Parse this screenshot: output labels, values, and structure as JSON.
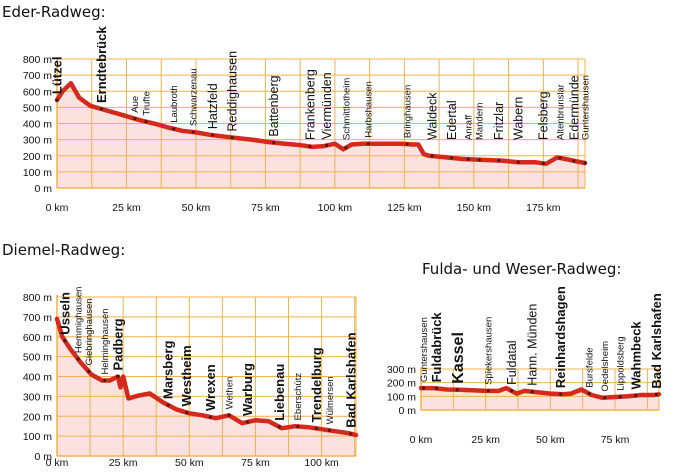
{
  "chart_data": [
    {
      "type": "area",
      "title": "Eder-Radweg:",
      "xlim": [
        0,
        190
      ],
      "ylim": [
        0,
        800
      ],
      "x_ticks": [
        0,
        25,
        50,
        75,
        100,
        125,
        150,
        175
      ],
      "x_tick_labels": [
        "0 km",
        "25 km",
        "50 km",
        "75 km",
        "100 km",
        "125 km",
        "150 km",
        "175 km"
      ],
      "y_ticks": [
        0,
        100,
        200,
        300,
        400,
        500,
        600,
        700,
        800
      ],
      "y_tick_labels": [
        "0 m",
        "100 m",
        "200 m",
        "300 m",
        "400 m",
        "500 m",
        "600 m",
        "700 m",
        "800 m"
      ],
      "grid": true,
      "x": [
        0,
        2,
        5,
        8,
        12,
        16,
        20,
        25,
        30,
        36,
        40,
        45,
        50,
        55,
        62,
        70,
        76,
        82,
        88,
        92,
        96,
        100,
        103,
        106,
        110,
        118,
        124,
        128,
        130,
        132,
        134,
        140,
        146,
        152,
        160,
        166,
        172,
        176,
        180,
        183,
        187,
        190
      ],
      "y": [
        545,
        600,
        650,
        560,
        510,
        490,
        470,
        445,
        420,
        395,
        375,
        355,
        345,
        330,
        315,
        300,
        285,
        275,
        265,
        255,
        260,
        275,
        240,
        270,
        275,
        275,
        275,
        270,
        270,
        210,
        200,
        190,
        180,
        175,
        170,
        160,
        160,
        150,
        190,
        180,
        165,
        155
      ],
      "places": [
        {
          "label": "Lützel",
          "km": 0,
          "size": "l"
        },
        {
          "label": "Erndtebrück",
          "km": 16,
          "size": "l"
        },
        {
          "label": "Aue",
          "km": 28,
          "size": "s"
        },
        {
          "label": "Trufte",
          "km": 32,
          "size": "s"
        },
        {
          "label": "Laubroth",
          "km": 42,
          "size": "s"
        },
        {
          "label": "Schwarzenau",
          "km": 49,
          "size": "s"
        },
        {
          "label": "Hatzfeld",
          "km": 56,
          "size": "m"
        },
        {
          "label": "Reddighausen",
          "km": 63,
          "size": "m"
        },
        {
          "label": "Battenberg",
          "km": 78,
          "size": "m"
        },
        {
          "label": "Frankenberg",
          "km": 91,
          "size": "m"
        },
        {
          "label": "Viermünden",
          "km": 97,
          "size": "m"
        },
        {
          "label": "Schmittlotheim",
          "km": 104,
          "size": "s"
        },
        {
          "label": "Harbshausen",
          "km": 112,
          "size": "s"
        },
        {
          "label": "Bringhausen",
          "km": 126,
          "size": "s"
        },
        {
          "label": "Waldeck",
          "km": 135,
          "size": "m"
        },
        {
          "label": "Edertal",
          "km": 142,
          "size": "m"
        },
        {
          "label": "Anraff",
          "km": 148,
          "size": "s"
        },
        {
          "label": "Mandern",
          "km": 152,
          "size": "s"
        },
        {
          "label": "Fritzlar",
          "km": 159,
          "size": "m"
        },
        {
          "label": "Wabern",
          "km": 166,
          "size": "m"
        },
        {
          "label": "Felsberg",
          "km": 175,
          "size": "m"
        },
        {
          "label": "Altenbrunslar",
          "km": 181,
          "size": "s"
        },
        {
          "label": "Edermünde",
          "km": 186,
          "size": "m"
        },
        {
          "label": "Guntershausen",
          "km": 192,
          "size": "s"
        }
      ]
    },
    {
      "type": "area",
      "title": "Diemel-Radweg:",
      "xlim": [
        0,
        113
      ],
      "ylim": [
        0,
        800
      ],
      "x_ticks": [
        0,
        25,
        50,
        75,
        100
      ],
      "x_tick_labels": [
        "0 km",
        "25 km",
        "50 km",
        "75 km",
        "100 km"
      ],
      "y_ticks": [
        0,
        100,
        200,
        300,
        400,
        500,
        600,
        700,
        800
      ],
      "y_tick_labels": [
        "0 m",
        "100 m",
        "200 m",
        "300 m",
        "400 m",
        "500 m",
        "600 m",
        "700 m",
        "800 m"
      ],
      "grid": true,
      "x": [
        0,
        2,
        5,
        9,
        13,
        17,
        20,
        23,
        24,
        25,
        27,
        31,
        35,
        40,
        45,
        50,
        55,
        60,
        65,
        70,
        75,
        80,
        85,
        90,
        95,
        100,
        105,
        110,
        113
      ],
      "y": [
        690,
        600,
        540,
        470,
        410,
        380,
        380,
        400,
        345,
        400,
        290,
        305,
        315,
        270,
        235,
        215,
        205,
        190,
        205,
        165,
        180,
        175,
        140,
        150,
        145,
        135,
        125,
        115,
        105
      ],
      "places": [
        {
          "label": "Usseln",
          "km": 3,
          "size": "l"
        },
        {
          "label": "Hemmighausen",
          "km": 8,
          "size": "s"
        },
        {
          "label": "Giebringhausen",
          "km": 12,
          "size": "s"
        },
        {
          "label": "Helminghausen",
          "km": 18,
          "size": "s"
        },
        {
          "label": "Padberg",
          "km": 23,
          "size": "l"
        },
        {
          "label": "Marsberg",
          "km": 42,
          "size": "l"
        },
        {
          "label": "Westheim",
          "km": 49,
          "size": "l"
        },
        {
          "label": "Wrexen",
          "km": 58,
          "size": "l"
        },
        {
          "label": "Wethen",
          "km": 65,
          "size": "s"
        },
        {
          "label": "Warburg",
          "km": 72,
          "size": "l"
        },
        {
          "label": "Liebenau",
          "km": 84,
          "size": "l"
        },
        {
          "label": "Eberschütz",
          "km": 91,
          "size": "s"
        },
        {
          "label": "Trendelburg",
          "km": 98,
          "size": "l"
        },
        {
          "label": "Wülmersen",
          "km": 103,
          "size": "s"
        },
        {
          "label": "Bad Karlshafen",
          "km": 111,
          "size": "l"
        }
      ]
    },
    {
      "type": "area",
      "title": "Fulda- und Weser-Radweg:",
      "xlim": [
        0,
        92
      ],
      "ylim": [
        0,
        300
      ],
      "x_ticks": [
        0,
        25,
        50,
        75
      ],
      "x_tick_labels": [
        "0 km",
        "25 km",
        "50 km",
        "75 km"
      ],
      "y_ticks": [
        0,
        100,
        200,
        300
      ],
      "y_tick_labels": [
        "0 m",
        "100 m",
        "200 m",
        "300 m"
      ],
      "grid": true,
      "x": [
        0,
        5,
        10,
        15,
        20,
        25,
        30,
        33,
        35,
        37,
        40,
        45,
        50,
        55,
        58,
        62,
        66,
        70,
        75,
        80,
        85,
        90,
        92
      ],
      "y": [
        160,
        160,
        150,
        148,
        145,
        140,
        140,
        160,
        140,
        120,
        140,
        130,
        120,
        115,
        120,
        150,
        110,
        90,
        95,
        100,
        110,
        110,
        115
      ],
      "places": [
        {
          "label": "Guntershausen",
          "km": 1,
          "size": "s"
        },
        {
          "label": "Fuldabrück",
          "km": 6,
          "size": "l"
        },
        {
          "label": "Kassel",
          "km": 14,
          "size": "xl"
        },
        {
          "label": "Spiekershausen",
          "km": 26,
          "size": "s"
        },
        {
          "label": "Fuldatal",
          "km": 35,
          "size": "m"
        },
        {
          "label": "Hann. Münden",
          "km": 43,
          "size": "m"
        },
        {
          "label": "Reinhardshagen",
          "km": 54,
          "size": "l"
        },
        {
          "label": "Bursfelde",
          "km": 65,
          "size": "s"
        },
        {
          "label": "Oedelsheim",
          "km": 71,
          "size": "s"
        },
        {
          "label": "Lippoldsberg",
          "km": 77,
          "size": "s"
        },
        {
          "label": "Wahmbeck",
          "km": 83,
          "size": "l"
        },
        {
          "label": "Bad Karlshafen",
          "km": 91,
          "size": "l"
        }
      ]
    }
  ],
  "colors": {
    "fill": "#fbe1e0",
    "line": "#d42a1d",
    "grid": "#f0b24a",
    "dots": "#4a1a10"
  }
}
